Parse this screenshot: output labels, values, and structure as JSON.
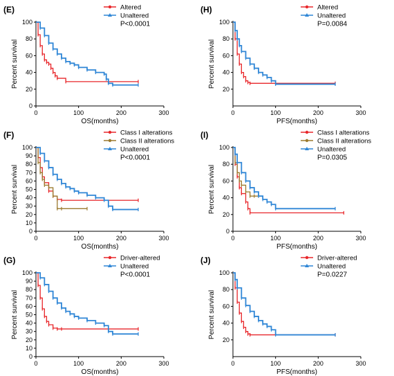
{
  "colors": {
    "altered": "#e8262a",
    "unaltered": "#2f86d6",
    "class2": "#9b7a2e"
  },
  "chart_data": [
    {
      "id": "E",
      "type": "line",
      "panel_label": "(E)",
      "title": "",
      "xlabel": "OS(months)",
      "ylabel": "Percent survival",
      "xlim": [
        0,
        300
      ],
      "ylim": [
        0,
        100
      ],
      "xticks": [
        0,
        100,
        200,
        300
      ],
      "yticks": [
        0,
        20,
        40,
        60,
        80,
        100
      ],
      "p_value": "P<0.0001",
      "legend_position": "top-right",
      "series": [
        {
          "name": "Altered",
          "color": "#e8262a",
          "marker": "circle",
          "x": [
            0,
            5,
            10,
            15,
            20,
            25,
            30,
            35,
            40,
            45,
            50,
            70,
            240
          ],
          "y": [
            100,
            85,
            72,
            62,
            55,
            52,
            50,
            45,
            40,
            36,
            33,
            29,
            29
          ]
        },
        {
          "name": "Unaltered",
          "color": "#2f86d6",
          "marker": "triangle",
          "x": [
            0,
            10,
            20,
            30,
            40,
            50,
            60,
            70,
            80,
            90,
            100,
            120,
            140,
            160,
            165,
            170,
            180,
            240
          ],
          "y": [
            100,
            93,
            84,
            75,
            68,
            62,
            57,
            53,
            51,
            49,
            46,
            43,
            40,
            38,
            32,
            27,
            25,
            25
          ]
        }
      ]
    },
    {
      "id": "H",
      "type": "line",
      "panel_label": "(H)",
      "title": "",
      "xlabel": "PFS(months)",
      "ylabel": "Percent survival",
      "xlim": [
        0,
        300
      ],
      "ylim": [
        0,
        100
      ],
      "xticks": [
        0,
        100,
        200,
        300
      ],
      "yticks": [
        20,
        40,
        60,
        80,
        100
      ],
      "p_value": "P=0.0084",
      "legend_position": "top-right",
      "series": [
        {
          "name": "Altered",
          "color": "#e8262a",
          "marker": "circle",
          "x": [
            0,
            5,
            10,
            15,
            20,
            25,
            30,
            35,
            40,
            240
          ],
          "y": [
            100,
            80,
            62,
            50,
            40,
            35,
            30,
            28,
            27,
            27
          ]
        },
        {
          "name": "Unaltered",
          "color": "#2f86d6",
          "marker": "triangle",
          "x": [
            0,
            5,
            10,
            15,
            20,
            30,
            40,
            50,
            60,
            70,
            80,
            90,
            100,
            240
          ],
          "y": [
            100,
            90,
            80,
            72,
            65,
            57,
            50,
            45,
            40,
            37,
            34,
            30,
            26,
            26
          ]
        }
      ]
    },
    {
      "id": "F",
      "type": "line",
      "panel_label": "(F)",
      "title": "",
      "xlabel": "OS(months)",
      "ylabel": "Percent survival",
      "xlim": [
        0,
        300
      ],
      "ylim": [
        0,
        100
      ],
      "xticks": [
        0,
        100,
        200,
        300
      ],
      "yticks": [
        0,
        10,
        20,
        30,
        40,
        50,
        60,
        70,
        80,
        90,
        100
      ],
      "p_value": "P<0.0001",
      "legend_position": "top-right",
      "series": [
        {
          "name": "Class I alterations",
          "color": "#e8262a",
          "marker": "circle",
          "x": [
            0,
            5,
            10,
            15,
            20,
            30,
            40,
            50,
            60,
            240
          ],
          "y": [
            100,
            88,
            76,
            65,
            58,
            48,
            42,
            38,
            37,
            37
          ]
        },
        {
          "name": "Class II alterations",
          "color": "#9b7a2e",
          "marker": "circle",
          "x": [
            0,
            5,
            10,
            15,
            20,
            30,
            40,
            50,
            60,
            120
          ],
          "y": [
            100,
            82,
            70,
            62,
            55,
            52,
            42,
            27,
            27,
            27
          ]
        },
        {
          "name": "Unaltered",
          "color": "#2f86d6",
          "marker": "triangle",
          "x": [
            0,
            10,
            20,
            30,
            40,
            50,
            60,
            70,
            80,
            90,
            100,
            120,
            140,
            160,
            170,
            180,
            240
          ],
          "y": [
            100,
            93,
            84,
            76,
            68,
            62,
            57,
            53,
            51,
            48,
            46,
            43,
            40,
            37,
            30,
            26,
            26
          ]
        }
      ]
    },
    {
      "id": "I",
      "type": "line",
      "panel_label": "(I)",
      "title": "",
      "xlabel": "PFS(months)",
      "ylabel": "Percent survival",
      "xlim": [
        0,
        300
      ],
      "ylim": [
        0,
        100
      ],
      "xticks": [
        0,
        100,
        200,
        300
      ],
      "yticks": [
        0,
        20,
        40,
        60,
        80,
        100
      ],
      "p_value": "P=0.0305",
      "legend_position": "top-right",
      "series": [
        {
          "name": "Class I alterations",
          "color": "#e8262a",
          "marker": "circle",
          "x": [
            0,
            5,
            10,
            15,
            20,
            30,
            35,
            40,
            260
          ],
          "y": [
            100,
            80,
            65,
            52,
            45,
            35,
            27,
            22,
            22
          ]
        },
        {
          "name": "Class II alterations",
          "color": "#9b7a2e",
          "marker": "circle",
          "x": [
            0,
            5,
            10,
            15,
            20,
            30,
            40,
            50,
            60
          ],
          "y": [
            100,
            82,
            70,
            60,
            55,
            47,
            42,
            42,
            42
          ]
        },
        {
          "name": "Unaltered",
          "color": "#2f86d6",
          "marker": "triangle",
          "x": [
            0,
            5,
            10,
            20,
            30,
            40,
            50,
            60,
            70,
            80,
            90,
            100,
            240
          ],
          "y": [
            100,
            92,
            82,
            70,
            60,
            52,
            47,
            42,
            38,
            35,
            32,
            27,
            27
          ]
        }
      ]
    },
    {
      "id": "G",
      "type": "line",
      "panel_label": "(G)",
      "title": "",
      "xlabel": "OS(months)",
      "ylabel": "Percent survival",
      "xlim": [
        0,
        300
      ],
      "ylim": [
        0,
        100
      ],
      "xticks": [
        0,
        100,
        200,
        300
      ],
      "yticks": [
        0,
        10,
        20,
        30,
        40,
        50,
        60,
        70,
        80,
        90,
        100
      ],
      "p_value": "P<0.0001",
      "legend_position": "top-right",
      "series": [
        {
          "name": "Driver-altered",
          "color": "#e8262a",
          "marker": "circle",
          "x": [
            0,
            5,
            10,
            15,
            20,
            25,
            30,
            40,
            50,
            60,
            240
          ],
          "y": [
            100,
            85,
            70,
            57,
            48,
            42,
            38,
            34,
            33,
            33,
            33
          ]
        },
        {
          "name": "Unaltered",
          "color": "#2f86d6",
          "marker": "triangle",
          "x": [
            0,
            10,
            20,
            30,
            40,
            50,
            60,
            70,
            80,
            90,
            100,
            120,
            140,
            160,
            170,
            180,
            240
          ],
          "y": [
            100,
            94,
            86,
            78,
            70,
            64,
            58,
            54,
            51,
            48,
            46,
            43,
            40,
            37,
            30,
            27,
            27
          ]
        }
      ]
    },
    {
      "id": "J",
      "type": "line",
      "panel_label": "(J)",
      "title": "",
      "xlabel": "PFS(months)",
      "ylabel": "Percent survival",
      "xlim": [
        0,
        300
      ],
      "ylim": [
        0,
        100
      ],
      "xticks": [
        0,
        100,
        200,
        300
      ],
      "yticks": [
        20,
        40,
        60,
        80,
        100
      ],
      "p_value": "P=0.0227",
      "legend_position": "top-right",
      "series": [
        {
          "name": "Driver-altered",
          "color": "#e8262a",
          "marker": "circle",
          "x": [
            0,
            5,
            10,
            15,
            20,
            25,
            30,
            35,
            40,
            240
          ],
          "y": [
            100,
            82,
            65,
            52,
            42,
            35,
            30,
            27,
            26,
            26
          ]
        },
        {
          "name": "Unaltered",
          "color": "#2f86d6",
          "marker": "triangle",
          "x": [
            0,
            5,
            10,
            20,
            30,
            40,
            50,
            60,
            70,
            80,
            90,
            100,
            240
          ],
          "y": [
            100,
            92,
            82,
            70,
            61,
            54,
            48,
            43,
            39,
            36,
            32,
            26,
            26
          ]
        }
      ]
    }
  ]
}
